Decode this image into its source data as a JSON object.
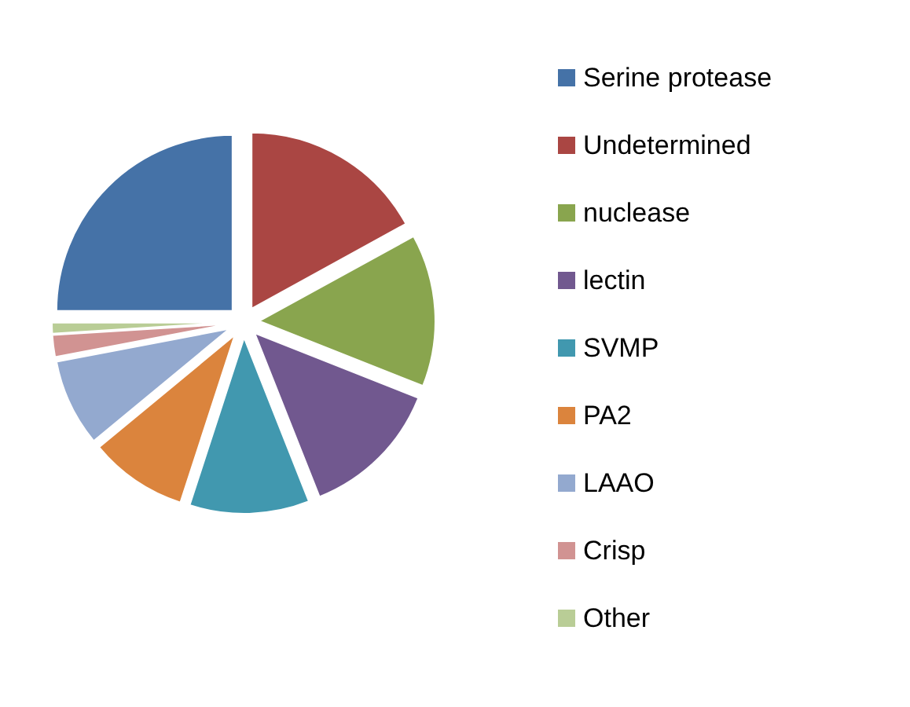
{
  "chart_data": {
    "type": "pie",
    "categories": [
      "Serine protease",
      "Undetermined",
      "nuclease",
      "lectin",
      "SVMP",
      "PA2",
      "LAAO",
      "Crisp",
      "Other"
    ],
    "values": [
      25,
      17,
      14,
      13,
      11,
      9,
      8,
      2,
      1
    ],
    "colors": [
      "#4572a7",
      "#aa4643",
      "#89a54e",
      "#71588f",
      "#4198af",
      "#db843d",
      "#93a9cf",
      "#d19392",
      "#b9cd96"
    ],
    "legend": "right"
  }
}
